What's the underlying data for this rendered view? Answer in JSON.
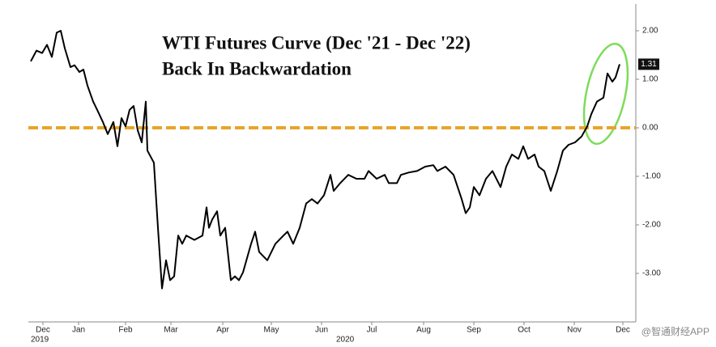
{
  "chart_data": {
    "type": "line",
    "title": "WTI Futures Curve (Dec '21 - Dec '22)",
    "subtitle": "Back In Backwardation",
    "x": [
      1.5,
      5,
      8.5,
      11.5,
      14.5,
      17.5,
      20,
      22.5,
      26,
      28.5,
      31.5,
      34,
      36.5,
      40,
      42.5,
      46,
      49,
      52.5,
      55,
      57.5,
      60,
      62.5,
      65,
      67.5,
      70,
      72.5,
      73.5,
      77.5,
      80,
      82.5,
      85,
      87.5,
      90,
      92.5,
      95,
      97.5,
      102.5,
      107.5,
      110,
      111.5,
      113.5,
      116.5,
      118.5,
      121.5,
      125,
      127.5,
      130,
      132.5,
      137.5,
      140,
      142.5,
      147.5,
      152.5,
      157.5,
      160,
      163.5,
      167.5,
      171.5,
      175,
      178.5,
      182.5,
      186.5,
      188.5,
      192.5,
      197.5,
      202.5,
      207.5,
      210,
      215,
      220,
      222.5,
      227.5,
      230,
      235,
      240,
      245,
      250,
      252.5,
      257.5,
      262.5,
      267.5,
      270,
      272.5,
      275,
      278.5,
      282.5,
      286.5,
      291.5,
      295,
      298.5,
      302.5,
      305.5,
      308.5,
      312.5,
      315,
      318.5,
      322.5,
      326.5,
      330,
      333.5,
      337.5,
      341.5,
      345,
      347.5,
      351,
      355,
      357.5,
      360.5,
      362.5,
      365
    ],
    "series": [
      {
        "color": "#000000",
        "values": [
          1.37,
          1.59,
          1.54,
          1.71,
          1.46,
          1.96,
          2.0,
          1.64,
          1.25,
          1.29,
          1.15,
          1.2,
          0.87,
          0.54,
          0.37,
          0.12,
          -0.13,
          0.12,
          -0.38,
          0.2,
          0.03,
          0.37,
          0.45,
          -0.05,
          -0.3,
          0.54,
          -0.47,
          -0.72,
          -2.06,
          -3.31,
          -2.73,
          -3.14,
          -3.06,
          -2.22,
          -2.39,
          -2.22,
          -2.31,
          -2.22,
          -1.64,
          -2.06,
          -1.89,
          -1.72,
          -2.22,
          -2.06,
          -3.14,
          -3.06,
          -3.14,
          -2.98,
          -2.39,
          -2.14,
          -2.56,
          -2.73,
          -2.39,
          -2.22,
          -2.14,
          -2.39,
          -2.06,
          -1.56,
          -1.47,
          -1.56,
          -1.39,
          -0.97,
          -1.3,
          -1.14,
          -0.97,
          -1.05,
          -1.05,
          -0.89,
          -1.05,
          -0.97,
          -1.14,
          -1.14,
          -0.97,
          -0.92,
          -0.89,
          -0.8,
          -0.77,
          -0.89,
          -0.8,
          -0.97,
          -1.47,
          -1.76,
          -1.64,
          -1.22,
          -1.39,
          -1.05,
          -0.89,
          -1.22,
          -0.8,
          -0.55,
          -0.64,
          -0.38,
          -0.64,
          -0.55,
          -0.8,
          -0.89,
          -1.3,
          -0.89,
          -0.47,
          -0.35,
          -0.3,
          -0.18,
          0.03,
          0.28,
          0.54,
          0.62,
          1.12,
          0.95,
          1.04,
          1.31
        ]
      }
    ],
    "last_value_label": "1.31",
    "xlim": [
      0,
      375
    ],
    "xticks": [
      {
        "value": 9,
        "label": "Dec"
      },
      {
        "value": 31,
        "label": "Jan"
      },
      {
        "value": 60,
        "label": "Feb"
      },
      {
        "value": 88,
        "label": "Mar"
      },
      {
        "value": 120,
        "label": "Apr"
      },
      {
        "value": 150,
        "label": "May"
      },
      {
        "value": 181,
        "label": "Jun"
      },
      {
        "value": 212,
        "label": "Jul"
      },
      {
        "value": 244,
        "label": "Aug"
      },
      {
        "value": 275,
        "label": "Sep"
      },
      {
        "value": 306,
        "label": "Oct"
      },
      {
        "value": 337,
        "label": "Nov"
      },
      {
        "value": 367,
        "label": "Dec"
      }
    ],
    "year_labels": [
      "2019",
      "2020"
    ],
    "ylim": [
      -3.95,
      2.55
    ],
    "yticks": [
      {
        "value": 2,
        "label": "2.00"
      },
      {
        "value": 1,
        "label": "1.00"
      },
      {
        "value": 0,
        "label": "0.00"
      },
      {
        "value": -1,
        "label": "-1.00"
      },
      {
        "value": -2,
        "label": "-2.00"
      },
      {
        "value": -3,
        "label": "-3.00"
      }
    ],
    "reference_line": {
      "value": 0,
      "color": "#e8a42a"
    },
    "watermark": "@智通财经APP"
  }
}
